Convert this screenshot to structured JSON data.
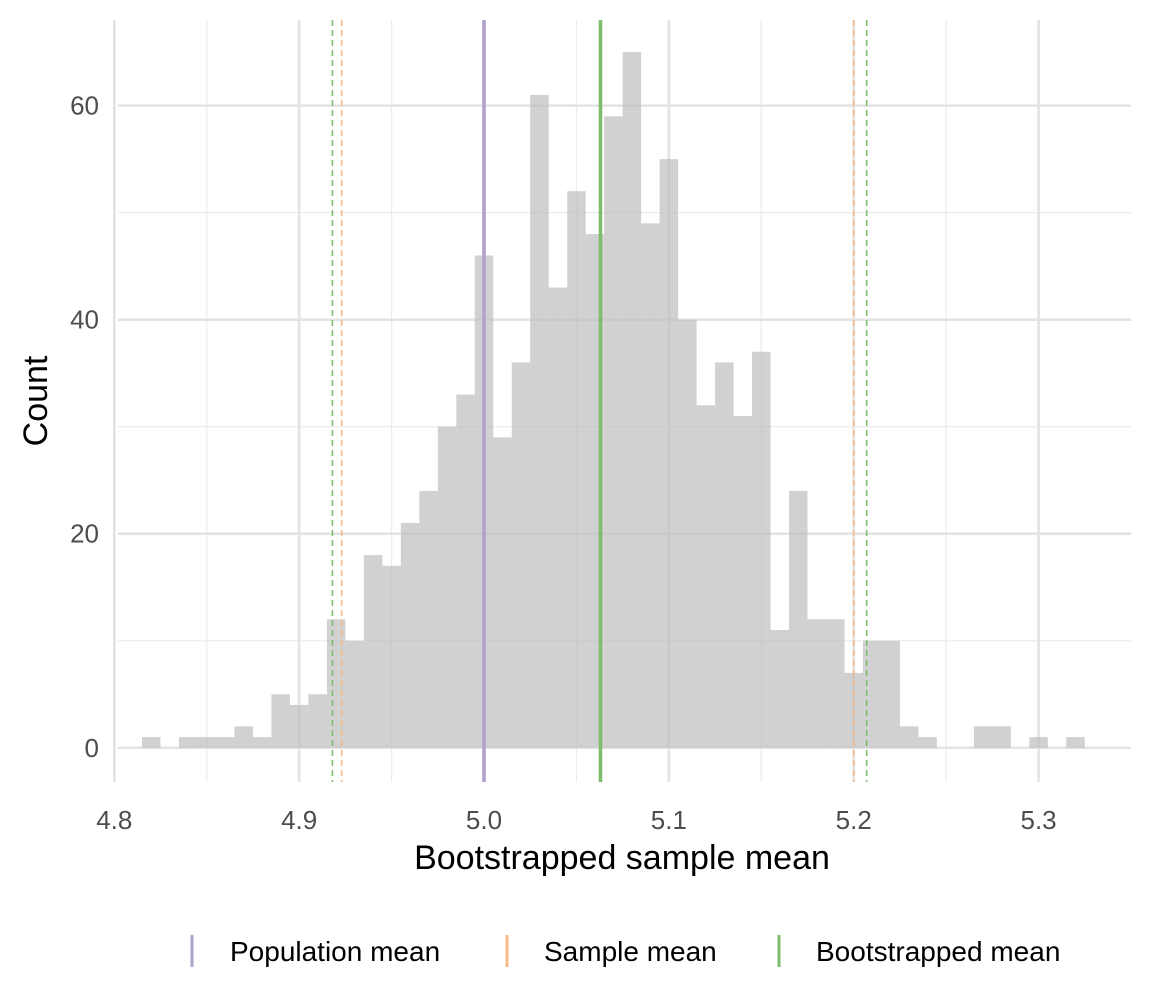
{
  "chart_data": {
    "type": "bar",
    "xlabel": "Bootstrapped sample mean",
    "ylabel": "Count",
    "xlim": [
      4.802,
      5.35
    ],
    "ylim": [
      -3.2,
      68
    ],
    "x_ticks": [
      4.8,
      4.9,
      5.0,
      5.1,
      5.2,
      5.3
    ],
    "x_tick_labels": [
      "4.8",
      "4.9",
      "5.0",
      "5.1",
      "5.2",
      "5.3"
    ],
    "y_ticks": [
      0,
      20,
      40,
      60
    ],
    "y_tick_labels": [
      "0",
      "20",
      "40",
      "60"
    ],
    "grid": true,
    "bin_width": 0.01,
    "bins": [
      {
        "x": 4.82,
        "count": 1
      },
      {
        "x": 4.83,
        "count": 0
      },
      {
        "x": 4.84,
        "count": 1
      },
      {
        "x": 4.85,
        "count": 1
      },
      {
        "x": 4.86,
        "count": 1
      },
      {
        "x": 4.87,
        "count": 2
      },
      {
        "x": 4.88,
        "count": 1
      },
      {
        "x": 4.89,
        "count": 5
      },
      {
        "x": 4.9,
        "count": 4
      },
      {
        "x": 4.91,
        "count": 5
      },
      {
        "x": 4.92,
        "count": 12
      },
      {
        "x": 4.93,
        "count": 10
      },
      {
        "x": 4.94,
        "count": 18
      },
      {
        "x": 4.95,
        "count": 17
      },
      {
        "x": 4.96,
        "count": 21
      },
      {
        "x": 4.97,
        "count": 24
      },
      {
        "x": 4.98,
        "count": 30
      },
      {
        "x": 4.99,
        "count": 33
      },
      {
        "x": 5.0,
        "count": 46
      },
      {
        "x": 5.01,
        "count": 29
      },
      {
        "x": 5.02,
        "count": 36
      },
      {
        "x": 5.03,
        "count": 61
      },
      {
        "x": 5.04,
        "count": 43
      },
      {
        "x": 5.05,
        "count": 52
      },
      {
        "x": 5.06,
        "count": 48
      },
      {
        "x": 5.07,
        "count": 59
      },
      {
        "x": 5.08,
        "count": 65
      },
      {
        "x": 5.09,
        "count": 49
      },
      {
        "x": 5.1,
        "count": 55
      },
      {
        "x": 5.11,
        "count": 40
      },
      {
        "x": 5.12,
        "count": 32
      },
      {
        "x": 5.13,
        "count": 36
      },
      {
        "x": 5.14,
        "count": 31
      },
      {
        "x": 5.15,
        "count": 37
      },
      {
        "x": 5.16,
        "count": 11
      },
      {
        "x": 5.17,
        "count": 24
      },
      {
        "x": 5.18,
        "count": 12
      },
      {
        "x": 5.19,
        "count": 12
      },
      {
        "x": 5.2,
        "count": 7
      },
      {
        "x": 5.21,
        "count": 10
      },
      {
        "x": 5.22,
        "count": 10
      },
      {
        "x": 5.23,
        "count": 2
      },
      {
        "x": 5.24,
        "count": 1
      },
      {
        "x": 5.25,
        "count": 0
      },
      {
        "x": 5.26,
        "count": 0
      },
      {
        "x": 5.27,
        "count": 2
      },
      {
        "x": 5.28,
        "count": 2
      },
      {
        "x": 5.29,
        "count": 0
      },
      {
        "x": 5.3,
        "count": 1
      },
      {
        "x": 5.31,
        "count": 0
      },
      {
        "x": 5.32,
        "count": 1
      }
    ],
    "bar_color": "#bebebe",
    "vlines": [
      {
        "name": "Population mean",
        "x": 5.0,
        "style": "solid",
        "color": "#b2a2cb"
      },
      {
        "name": "Bootstrapped mean",
        "x": 5.063,
        "style": "solid",
        "color": "#7dbd6b"
      },
      {
        "name": "Sample mean",
        "x": 4.923,
        "style": "dashed",
        "color": "#f7ba84"
      },
      {
        "name": "Sample mean",
        "x": 5.2,
        "style": "dashed",
        "color": "#f7ba84"
      },
      {
        "name": "Bootstrapped mean",
        "x": 4.918,
        "style": "dashed",
        "color": "#7dbd6b"
      },
      {
        "name": "Bootstrapped mean",
        "x": 5.207,
        "style": "dashed",
        "color": "#7dbd6b"
      }
    ],
    "legend": {
      "position": "bottom",
      "items": [
        {
          "label": "Population mean",
          "color": "#b2a2cb"
        },
        {
          "label": "Sample mean",
          "color": "#f7ba84"
        },
        {
          "label": "Bootstrapped mean",
          "color": "#7dbd6b"
        }
      ]
    }
  }
}
